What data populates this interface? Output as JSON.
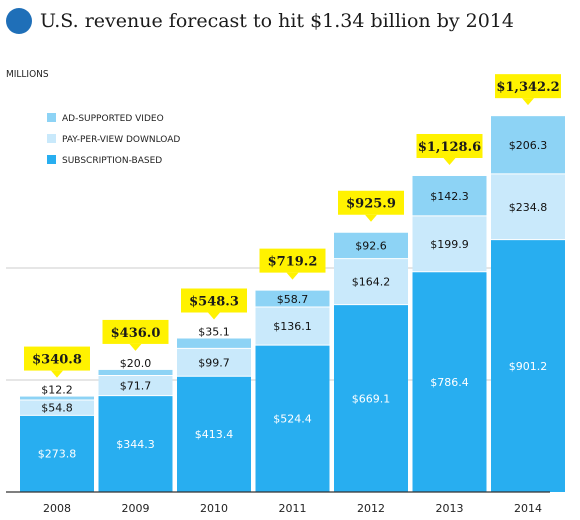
{
  "title": "U.S. revenue forecast to hit $1.34 billion by 2014",
  "colors": {
    "title_dot": "#1f6fb8",
    "subscription": "#28aef0",
    "pay_per_view": "#c9e9fb",
    "ad_supported": "#8dd3f5",
    "callout": "#fff200",
    "axis": "#333333",
    "grid": "#cccccc"
  },
  "chart_data": {
    "type": "bar",
    "stacked": true,
    "units_label": "MILLIONS",
    "categories": [
      "2008",
      "2009",
      "2010",
      "2011",
      "2012",
      "2013",
      "2014"
    ],
    "series": [
      {
        "name": "SUBSCRIPTION-BASED",
        "values": [
          273.8,
          344.3,
          413.4,
          524.4,
          669.1,
          786.4,
          901.2
        ],
        "labels": [
          "$273.8",
          "$344.3",
          "$413.4",
          "$524.4",
          "$669.1",
          "$786.4",
          "$901.2"
        ]
      },
      {
        "name": "PAY-PER-VIEW DOWNLOAD",
        "values": [
          54.8,
          71.7,
          99.7,
          136.1,
          164.2,
          199.9,
          234.8
        ],
        "labels": [
          "$54.8",
          "$71.7",
          "$99.7",
          "$136.1",
          "$164.2",
          "$199.9",
          "$234.8"
        ]
      },
      {
        "name": "AD-SUPPORTED VIDEO",
        "values": [
          12.2,
          20.0,
          35.1,
          58.7,
          92.6,
          142.3,
          206.3
        ],
        "labels": [
          "$12.2",
          "$20.0",
          "$35.1",
          "$58.7",
          "$92.6",
          "$142.3",
          "$206.3"
        ]
      }
    ],
    "totals": [
      "$340.8",
      "$436.0",
      "$548.3",
      "$719.2",
      "$925.9",
      "$1,128.6",
      "$1,342.2"
    ],
    "legend_order": [
      "AD-SUPPORTED VIDEO",
      "PAY-PER-VIEW DOWNLOAD",
      "SUBSCRIPTION-BASED"
    ],
    "legend_position": "top-left",
    "ylim": [
      0,
      1400
    ],
    "grid": true,
    "gridlines": [
      400,
      800
    ]
  }
}
